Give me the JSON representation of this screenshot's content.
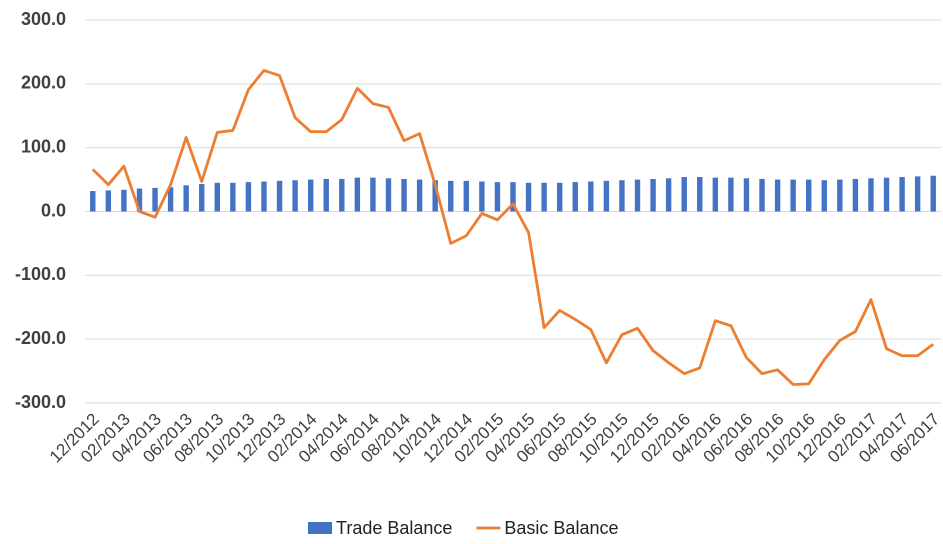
{
  "chart_data": {
    "type": "bar-line",
    "categories": [
      "12/2012",
      null,
      "02/2013",
      null,
      "04/2013",
      null,
      "06/2013",
      null,
      "08/2013",
      null,
      "10/2013",
      null,
      "12/2013",
      null,
      "02/2014",
      null,
      "04/2014",
      null,
      "06/2014",
      null,
      "08/2014",
      null,
      "10/2014",
      null,
      "12/2014",
      null,
      "02/2015",
      null,
      "04/2015",
      null,
      "06/2015",
      null,
      "08/2015",
      null,
      "10/2015",
      null,
      "12/2015",
      null,
      "02/2016",
      null,
      "04/2016",
      null,
      "06/2016",
      null,
      "08/2016",
      null,
      "10/2016",
      null,
      "12/2016",
      null,
      "02/2017",
      null,
      "04/2017",
      null,
      "06/2017"
    ],
    "series": [
      {
        "name": "Trade Balance",
        "type": "bar",
        "color": "#4472c4",
        "values": [
          32,
          33,
          34,
          36,
          37,
          38,
          41,
          43,
          45,
          45,
          46,
          47,
          48,
          49,
          50,
          51,
          51,
          53,
          53,
          52,
          51,
          50,
          49,
          48,
          48,
          47,
          46,
          46,
          45,
          45,
          45,
          46,
          47,
          48,
          49,
          50,
          51,
          52,
          54,
          54,
          53,
          53,
          52,
          51,
          50,
          50,
          50,
          49,
          50,
          51,
          52,
          53,
          54,
          55,
          56
        ]
      },
      {
        "name": "Basic Balance",
        "type": "line",
        "color": "#ed7d31",
        "values": [
          66,
          42,
          71,
          0,
          -9,
          42,
          116,
          47,
          124,
          127,
          191,
          221,
          213,
          147,
          125,
          125,
          144,
          193,
          169,
          163,
          111,
          122,
          42,
          -50,
          -38,
          -3,
          -13,
          12,
          -33,
          -182,
          -155,
          -169,
          -185,
          -237,
          -193,
          -183,
          -218,
          -237,
          -254,
          -245,
          -171,
          -179,
          -229,
          -254,
          -248,
          -271,
          -270,
          -232,
          -202,
          -188,
          -138,
          -215,
          -226,
          -226,
          -208
        ]
      }
    ],
    "ylim": [
      -300,
      300
    ],
    "yticks": [
      {
        "value": -300,
        "label": "-300.0"
      },
      {
        "value": -200,
        "label": "-200.0"
      },
      {
        "value": -100,
        "label": "-100.0"
      },
      {
        "value": 0,
        "label": "0.0"
      },
      {
        "value": 100,
        "label": "100.0"
      },
      {
        "value": 200,
        "label": "200.0"
      },
      {
        "value": 300,
        "label": "300.0"
      }
    ],
    "grid": true,
    "legend": "bottom"
  }
}
